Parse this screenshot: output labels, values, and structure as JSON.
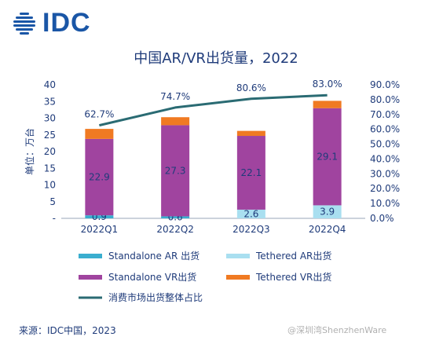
{
  "brand": {
    "logo_text": "IDC",
    "colors": {
      "logo": "#1a56a6"
    }
  },
  "source": "来源：IDC中国，2023",
  "watermark": "@深圳湾ShenzhenWare",
  "chart_data": {
    "type": "bar",
    "title": "中国AR/VR出货量，2022",
    "ylabel": "单位：万台",
    "categories": [
      "2022Q1",
      "2022Q2",
      "2022Q3",
      "2022Q4"
    ],
    "ylim": [
      0,
      40
    ],
    "y_ticks": [
      "40",
      "35",
      "30",
      "25",
      "20",
      "15",
      "10",
      "5",
      "-"
    ],
    "y2lim": [
      0,
      90
    ],
    "y2_ticks": [
      "90.0%",
      "80.0%",
      "70.0%",
      "60.0%",
      "50.0%",
      "40.0%",
      "30.0%",
      "20.0%",
      "10.0%",
      "0.0%"
    ],
    "stacked": true,
    "series": [
      {
        "name": "Standalone AR 出货",
        "color": "#3aaecf",
        "values": [
          0.9,
          0.6,
          0.0,
          0.0
        ],
        "labels": [
          "0.9",
          "0.6",
          "",
          ""
        ]
      },
      {
        "name": "Tethered AR出货",
        "color": "#a9dff0",
        "values": [
          0.0,
          0.0,
          2.6,
          3.9
        ],
        "labels": [
          "",
          "",
          "2.6",
          "3.9"
        ]
      },
      {
        "name": "Standalone VR出货",
        "color": "#a0449f",
        "values": [
          22.9,
          27.3,
          22.1,
          29.1
        ],
        "labels": [
          "22.9",
          "27.3",
          "22.1",
          "29.1"
        ]
      },
      {
        "name": "Tethered VR出货",
        "color": "#f07a22",
        "values": [
          3.0,
          2.4,
          1.5,
          2.2
        ]
      }
    ],
    "line": {
      "name": "消费市场出货整体占比",
      "color": "#2a6b73",
      "values": [
        62.7,
        74.7,
        80.6,
        83.0
      ],
      "labels": [
        "62.7%",
        "74.7%",
        "80.6%",
        "83.0%"
      ]
    },
    "grid": false,
    "legend_placement": "bottom"
  }
}
